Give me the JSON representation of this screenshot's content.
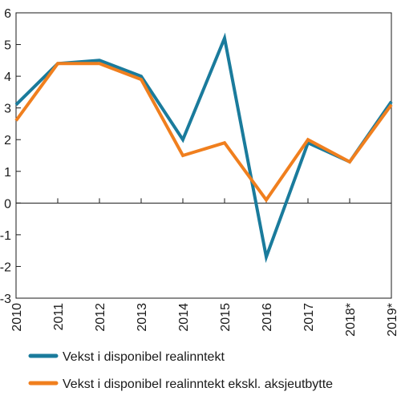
{
  "chart_data": {
    "type": "line",
    "categories": [
      "2010",
      "2011",
      "2012",
      "2013",
      "2014",
      "2015",
      "2016",
      "2017",
      "2018*",
      "2019*"
    ],
    "series": [
      {
        "name": "Vekst i disponibel realinntekt",
        "color": "#1a7b9c",
        "values": [
          3.1,
          4.4,
          4.5,
          4.0,
          2.0,
          5.2,
          -1.7,
          1.9,
          1.3,
          3.2
        ]
      },
      {
        "name": "Vekst i disponibel realinntekt ekskl. aksjeutbytte",
        "color": "#f07f1e",
        "values": [
          2.6,
          4.4,
          4.4,
          3.9,
          1.5,
          1.9,
          0.1,
          2.0,
          1.3,
          3.1
        ]
      }
    ],
    "ylim": [
      -3,
      6
    ],
    "yticks": [
      -3,
      -2,
      -1,
      0,
      1,
      2,
      3,
      4,
      5,
      6
    ],
    "ytick_labels": [
      "-3",
      "-2",
      "-1",
      "0",
      "1",
      "2",
      "3",
      "4",
      "5",
      "6"
    ],
    "grid": false,
    "legend_position": "bottom-left"
  }
}
